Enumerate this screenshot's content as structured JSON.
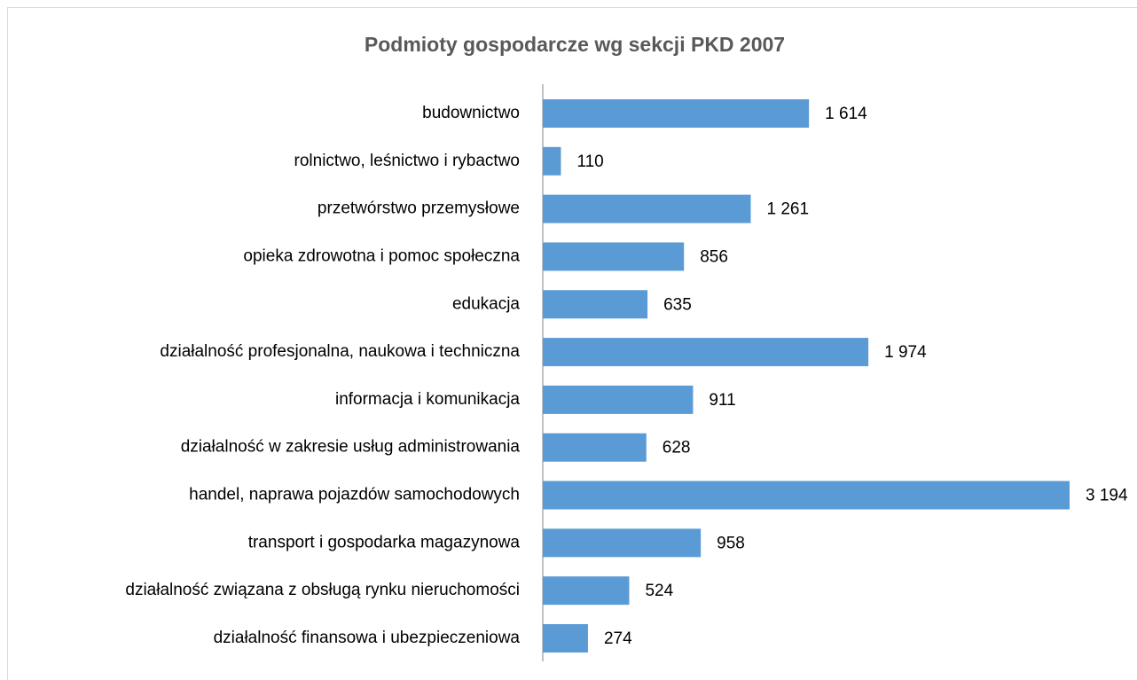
{
  "chart_data": {
    "type": "bar",
    "orientation": "horizontal",
    "title": "Podmioty gospodarcze wg sekcji  PKD 2007",
    "categories": [
      "budownictwo",
      "rolnictwo, leśnictwo i rybactwo",
      "przetwórstwo przemysłowe",
      "opieka zdrowotna i pomoc społeczna",
      "edukacja",
      "działalność profesjonalna, naukowa i techniczna",
      "informacja i komunikacja",
      "działalność w zakresie usług administrowania",
      "handel, naprawa pojazdów samochodowych",
      "transport i gospodarka magazynowa",
      "działalność związana z obsługą rynku nieruchomości",
      "działalność finansowa i ubezpieczeniowa"
    ],
    "values": [
      1614,
      110,
      1261,
      856,
      635,
      1974,
      911,
      628,
      3194,
      958,
      524,
      274
    ],
    "value_labels": [
      "1 614",
      "110",
      "1 261",
      "856",
      "635",
      "1 974",
      "911",
      "628",
      "3 194",
      "958",
      "524",
      "274"
    ],
    "color": "#5b9bd5"
  }
}
